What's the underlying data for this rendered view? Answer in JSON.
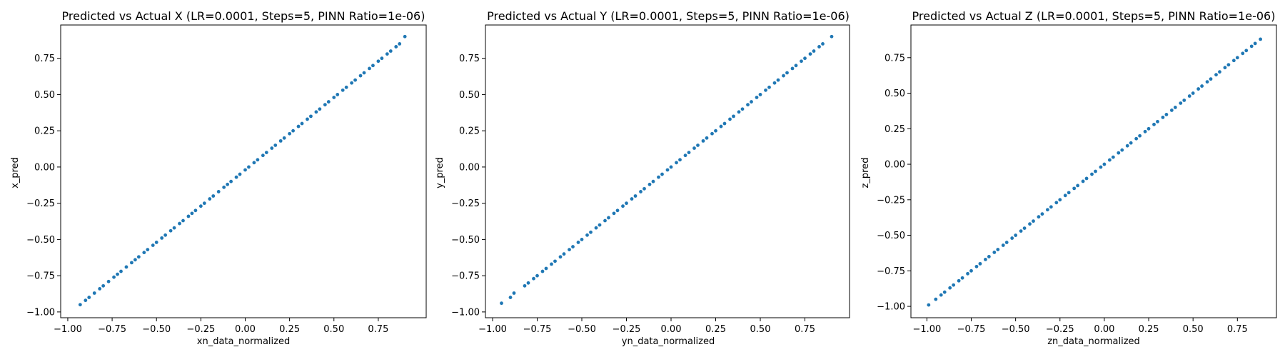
{
  "chart_data": [
    {
      "type": "scatter",
      "title": "Predicted vs Actual X (LR=0.0001, Steps=5, PINN Ratio=1e-06)",
      "xlabel": "xn_data_normalized",
      "ylabel": "x_pred",
      "xlim": [
        -1.04,
        1.02
      ],
      "ylim": [
        -1.04,
        0.98
      ],
      "xticks": [
        -1.0,
        -0.75,
        -0.5,
        -0.25,
        0.0,
        0.25,
        0.5,
        0.75
      ],
      "yticks": [
        -1.0,
        -0.75,
        -0.5,
        -0.25,
        0.0,
        0.25,
        0.5,
        0.75
      ],
      "xtick_labels": [
        "−1.00",
        "−0.75",
        "−0.50",
        "−0.25",
        "0.00",
        "0.25",
        "0.50",
        "0.75"
      ],
      "ytick_labels": [
        "−1.00",
        "−0.75",
        "−0.50",
        "−0.25",
        "0.00",
        "0.25",
        "0.50",
        "0.75"
      ],
      "color": "#1f77b4",
      "grid": false,
      "fit": {
        "slope": 1.0,
        "intercept": -0.02
      },
      "x": [
        -0.93,
        -0.9,
        -0.88,
        -0.85,
        -0.82,
        -0.8,
        -0.77,
        -0.74,
        -0.72,
        -0.7,
        -0.67,
        -0.64,
        -0.62,
        -0.6,
        -0.57,
        -0.55,
        -0.52,
        -0.5,
        -0.47,
        -0.45,
        -0.42,
        -0.4,
        -0.37,
        -0.35,
        -0.32,
        -0.3,
        -0.28,
        -0.25,
        -0.23,
        -0.2,
        -0.18,
        -0.15,
        -0.12,
        -0.1,
        -0.08,
        -0.05,
        -0.03,
        0.0,
        0.02,
        0.05,
        0.07,
        0.1,
        0.12,
        0.15,
        0.17,
        0.2,
        0.22,
        0.25,
        0.27,
        0.3,
        0.32,
        0.35,
        0.37,
        0.4,
        0.42,
        0.45,
        0.47,
        0.5,
        0.52,
        0.55,
        0.57,
        0.6,
        0.62,
        0.65,
        0.67,
        0.7,
        0.72,
        0.75,
        0.77,
        0.8,
        0.82,
        0.85,
        0.87,
        0.9
      ],
      "y": [
        -0.95,
        -0.92,
        -0.9,
        -0.87,
        -0.84,
        -0.82,
        -0.79,
        -0.76,
        -0.74,
        -0.72,
        -0.69,
        -0.66,
        -0.64,
        -0.62,
        -0.59,
        -0.57,
        -0.54,
        -0.52,
        -0.49,
        -0.47,
        -0.44,
        -0.42,
        -0.39,
        -0.37,
        -0.34,
        -0.32,
        -0.3,
        -0.27,
        -0.25,
        -0.22,
        -0.2,
        -0.17,
        -0.14,
        -0.12,
        -0.1,
        -0.07,
        -0.05,
        -0.02,
        0.0,
        0.03,
        0.05,
        0.08,
        0.1,
        0.13,
        0.15,
        0.18,
        0.2,
        0.23,
        0.25,
        0.28,
        0.3,
        0.33,
        0.35,
        0.38,
        0.4,
        0.43,
        0.45,
        0.48,
        0.5,
        0.53,
        0.55,
        0.58,
        0.6,
        0.63,
        0.65,
        0.68,
        0.7,
        0.73,
        0.75,
        0.78,
        0.8,
        0.83,
        0.85,
        0.9
      ]
    },
    {
      "type": "scatter",
      "title": "Predicted vs Actual Y (LR=0.0001, Steps=5, PINN Ratio=1e-06)",
      "xlabel": "yn_data_normalized",
      "ylabel": "y_pred",
      "xlim": [
        -1.04,
        1.0
      ],
      "ylim": [
        -1.04,
        0.98
      ],
      "xticks": [
        -1.0,
        -0.75,
        -0.5,
        -0.25,
        0.0,
        0.25,
        0.5,
        0.75
      ],
      "yticks": [
        -1.0,
        -0.75,
        -0.5,
        -0.25,
        0.0,
        0.25,
        0.5,
        0.75
      ],
      "xtick_labels": [
        "−1.00",
        "−0.75",
        "−0.50",
        "−0.25",
        "0.00",
        "0.25",
        "0.50",
        "0.75"
      ],
      "ytick_labels": [
        "−1.00",
        "−0.75",
        "−0.50",
        "−0.25",
        "0.00",
        "0.25",
        "0.50",
        "0.75"
      ],
      "color": "#1f77b4",
      "grid": false,
      "fit": {
        "slope": 1.0,
        "intercept": 0.0
      },
      "x": [
        -0.95,
        -0.9,
        -0.88,
        -0.82,
        -0.8,
        -0.77,
        -0.75,
        -0.72,
        -0.7,
        -0.67,
        -0.65,
        -0.62,
        -0.6,
        -0.57,
        -0.55,
        -0.52,
        -0.5,
        -0.47,
        -0.45,
        -0.42,
        -0.4,
        -0.37,
        -0.35,
        -0.32,
        -0.3,
        -0.27,
        -0.25,
        -0.22,
        -0.2,
        -0.17,
        -0.15,
        -0.12,
        -0.1,
        -0.07,
        -0.05,
        -0.02,
        0.0,
        0.03,
        0.05,
        0.08,
        0.1,
        0.13,
        0.15,
        0.18,
        0.2,
        0.23,
        0.25,
        0.28,
        0.3,
        0.33,
        0.35,
        0.38,
        0.4,
        0.43,
        0.45,
        0.48,
        0.5,
        0.53,
        0.55,
        0.58,
        0.6,
        0.63,
        0.65,
        0.68,
        0.7,
        0.73,
        0.75,
        0.78,
        0.8,
        0.83,
        0.85,
        0.9
      ],
      "y": [
        -0.94,
        -0.9,
        -0.87,
        -0.82,
        -0.8,
        -0.77,
        -0.75,
        -0.72,
        -0.7,
        -0.67,
        -0.65,
        -0.62,
        -0.6,
        -0.57,
        -0.55,
        -0.52,
        -0.5,
        -0.47,
        -0.45,
        -0.42,
        -0.4,
        -0.37,
        -0.35,
        -0.32,
        -0.3,
        -0.27,
        -0.25,
        -0.22,
        -0.2,
        -0.17,
        -0.15,
        -0.12,
        -0.1,
        -0.07,
        -0.05,
        -0.02,
        0.0,
        0.03,
        0.05,
        0.08,
        0.1,
        0.13,
        0.15,
        0.18,
        0.2,
        0.23,
        0.25,
        0.28,
        0.3,
        0.33,
        0.35,
        0.38,
        0.4,
        0.43,
        0.45,
        0.48,
        0.5,
        0.53,
        0.55,
        0.58,
        0.6,
        0.63,
        0.65,
        0.68,
        0.7,
        0.73,
        0.75,
        0.78,
        0.8,
        0.83,
        0.85,
        0.9
      ]
    },
    {
      "type": "scatter",
      "title": "Predicted vs Actual Z (LR=0.0001, Steps=5, PINN Ratio=1e-06)",
      "xlabel": "zn_data_normalized",
      "ylabel": "z_pred",
      "xlim": [
        -1.09,
        0.97
      ],
      "ylim": [
        -1.08,
        0.98
      ],
      "xticks": [
        -1.0,
        -0.75,
        -0.5,
        -0.25,
        0.0,
        0.25,
        0.5,
        0.75
      ],
      "yticks": [
        -1.0,
        -0.75,
        -0.5,
        -0.25,
        0.0,
        0.25,
        0.5,
        0.75
      ],
      "xtick_labels": [
        "−1.00",
        "−0.75",
        "−0.50",
        "−0.25",
        "0.00",
        "0.25",
        "0.50",
        "0.75"
      ],
      "ytick_labels": [
        "−1.00",
        "−0.75",
        "−0.50",
        "−0.25",
        "0.00",
        "0.25",
        "0.50",
        "0.75"
      ],
      "color": "#1f77b4",
      "grid": false,
      "fit": {
        "slope": 1.0,
        "intercept": 0.0
      },
      "x": [
        -0.99,
        -0.95,
        -0.92,
        -0.9,
        -0.87,
        -0.85,
        -0.82,
        -0.8,
        -0.77,
        -0.75,
        -0.72,
        -0.7,
        -0.67,
        -0.65,
        -0.62,
        -0.6,
        -0.57,
        -0.55,
        -0.52,
        -0.5,
        -0.47,
        -0.45,
        -0.42,
        -0.4,
        -0.37,
        -0.35,
        -0.32,
        -0.3,
        -0.27,
        -0.25,
        -0.22,
        -0.2,
        -0.17,
        -0.15,
        -0.12,
        -0.1,
        -0.07,
        -0.05,
        -0.02,
        0.0,
        0.03,
        0.05,
        0.08,
        0.1,
        0.13,
        0.15,
        0.18,
        0.2,
        0.23,
        0.25,
        0.28,
        0.3,
        0.33,
        0.35,
        0.38,
        0.4,
        0.43,
        0.45,
        0.48,
        0.5,
        0.53,
        0.55,
        0.58,
        0.6,
        0.63,
        0.65,
        0.68,
        0.7,
        0.73,
        0.75,
        0.78,
        0.8,
        0.83,
        0.85,
        0.88
      ],
      "y": [
        -0.99,
        -0.95,
        -0.92,
        -0.9,
        -0.87,
        -0.85,
        -0.82,
        -0.8,
        -0.77,
        -0.75,
        -0.72,
        -0.7,
        -0.67,
        -0.65,
        -0.62,
        -0.6,
        -0.57,
        -0.55,
        -0.52,
        -0.5,
        -0.47,
        -0.45,
        -0.42,
        -0.4,
        -0.37,
        -0.35,
        -0.32,
        -0.3,
        -0.27,
        -0.25,
        -0.22,
        -0.2,
        -0.17,
        -0.15,
        -0.12,
        -0.1,
        -0.07,
        -0.05,
        -0.02,
        0.0,
        0.03,
        0.05,
        0.08,
        0.1,
        0.13,
        0.15,
        0.18,
        0.2,
        0.23,
        0.25,
        0.28,
        0.3,
        0.33,
        0.35,
        0.38,
        0.4,
        0.43,
        0.45,
        0.48,
        0.5,
        0.53,
        0.55,
        0.58,
        0.6,
        0.63,
        0.65,
        0.68,
        0.7,
        0.73,
        0.75,
        0.78,
        0.8,
        0.83,
        0.85,
        0.88
      ]
    }
  ]
}
